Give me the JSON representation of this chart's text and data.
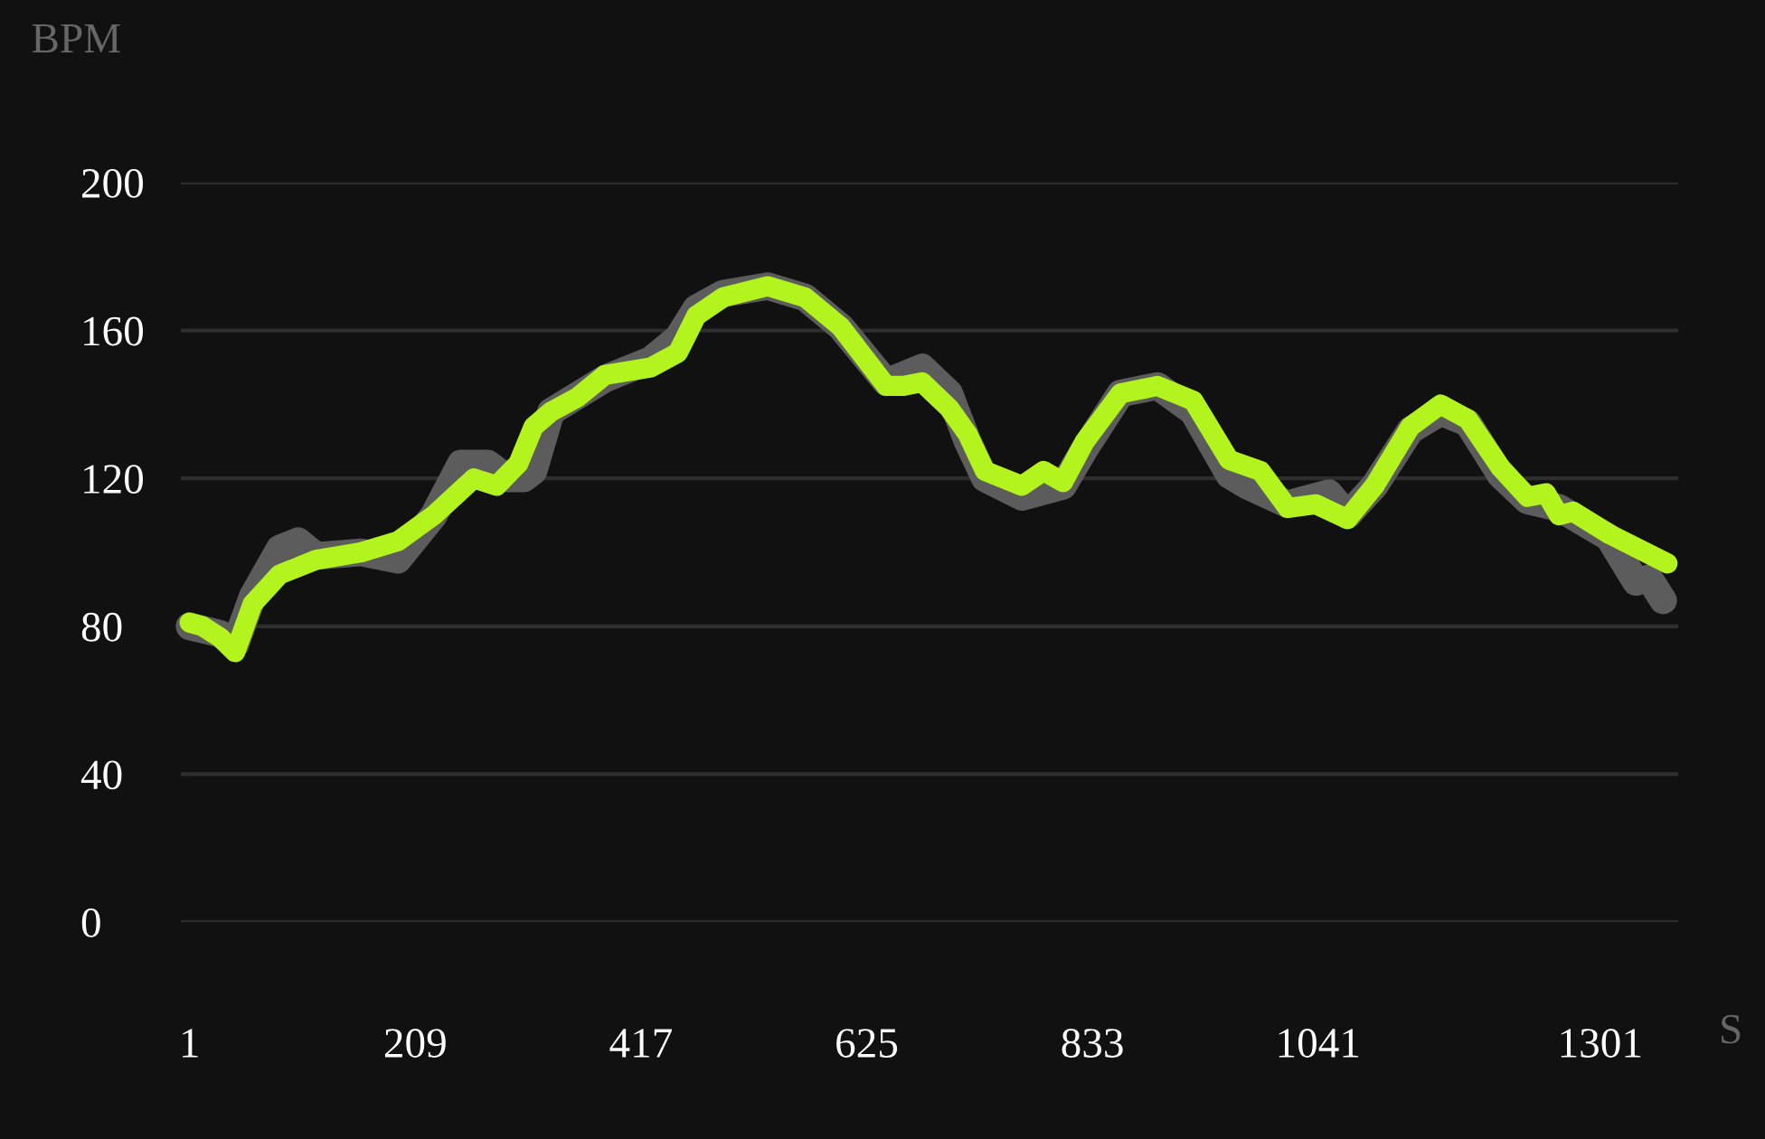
{
  "chart_data": {
    "type": "line",
    "xlabel": "S",
    "ylabel": "BPM",
    "xlim": [
      -7,
      1373
    ],
    "ylim": [
      0,
      200
    ],
    "xticks": [
      1,
      209,
      417,
      625,
      833,
      1041,
      1301
    ],
    "yticks": [
      0,
      40,
      80,
      120,
      160,
      200
    ],
    "grid": "y",
    "line_style": "solid",
    "series": [
      {
        "color": "#5c5c5c",
        "x": [
          1,
          29,
          43,
          59,
          84,
          101,
          118,
          159,
          193,
          226,
          251,
          276,
          294,
          309,
          318,
          334,
          384,
          426,
          451,
          468,
          493,
          534,
          568,
          601,
          643,
          676,
          701,
          718,
          734,
          768,
          806,
          826,
          859,
          893,
          926,
          959,
          976,
          1013,
          1051,
          1068,
          1093,
          1126,
          1154,
          1179,
          1209,
          1234,
          1263,
          1309,
          1334,
          1346,
          1359
        ],
        "values": [
          80,
          78,
          75,
          88,
          101,
          103,
          99,
          100,
          98,
          110,
          124,
          124,
          120,
          120,
          122,
          138,
          147,
          152,
          158,
          166,
          170,
          172,
          169,
          161,
          146,
          150,
          143,
          130,
          120,
          115,
          118,
          128,
          143,
          145,
          138,
          121,
          118,
          113,
          116,
          110,
          118,
          133,
          138,
          135,
          121,
          114,
          112,
          104,
          92,
          93,
          87
        ]
      },
      {
        "color": "#b4f41e",
        "x": [
          1,
          13,
          29,
          43,
          59,
          84,
          118,
          159,
          193,
          226,
          263,
          284,
          304,
          318,
          334,
          359,
          384,
          426,
          451,
          468,
          493,
          534,
          568,
          601,
          643,
          659,
          676,
          701,
          718,
          734,
          768,
          788,
          806,
          826,
          859,
          893,
          926,
          959,
          988,
          1013,
          1039,
          1068,
          1093,
          1126,
          1154,
          1179,
          1209,
          1234,
          1251,
          1263,
          1276,
          1309,
          1363
        ],
        "values": [
          81,
          80,
          77,
          73,
          86,
          94,
          98,
          100,
          103,
          110,
          120,
          118,
          124,
          134,
          138,
          142,
          148,
          150,
          154,
          164,
          169,
          172,
          169,
          161,
          145,
          145,
          146,
          139,
          132,
          122,
          118,
          122,
          119,
          130,
          143,
          145,
          141,
          125,
          122,
          112,
          113,
          109,
          118,
          134,
          140,
          136,
          123,
          115,
          116,
          110,
          111,
          105,
          97
        ]
      }
    ]
  }
}
